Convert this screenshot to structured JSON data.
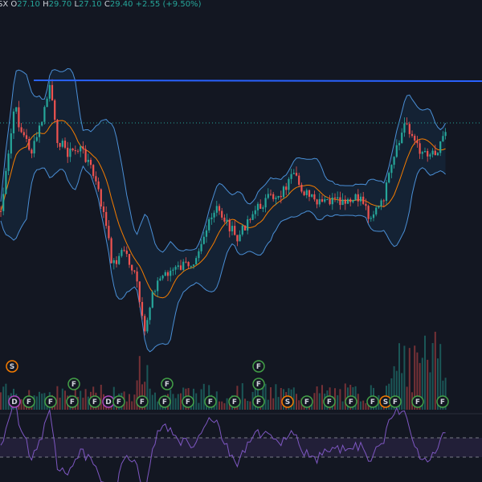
{
  "header": {
    "symbol": "SX",
    "items": [
      {
        "label": "O",
        "value": "27.10"
      },
      {
        "label": "H",
        "value": "29.70"
      },
      {
        "label": "L",
        "value": "27.10"
      },
      {
        "label": "C",
        "value": "29.40"
      }
    ],
    "change": "+2.55",
    "change_pct": "(+9.50%)"
  },
  "markers": {
    "top": [
      "S",
      "F",
      "F",
      "F",
      "F"
    ],
    "bottom": [
      "D",
      "F",
      "F",
      "F",
      "F",
      "D",
      "F",
      "F",
      "F",
      "F",
      "F",
      "F",
      "F",
      "S",
      "F",
      "F",
      "F",
      "F",
      "S",
      "F",
      "F",
      "F"
    ]
  }
}
